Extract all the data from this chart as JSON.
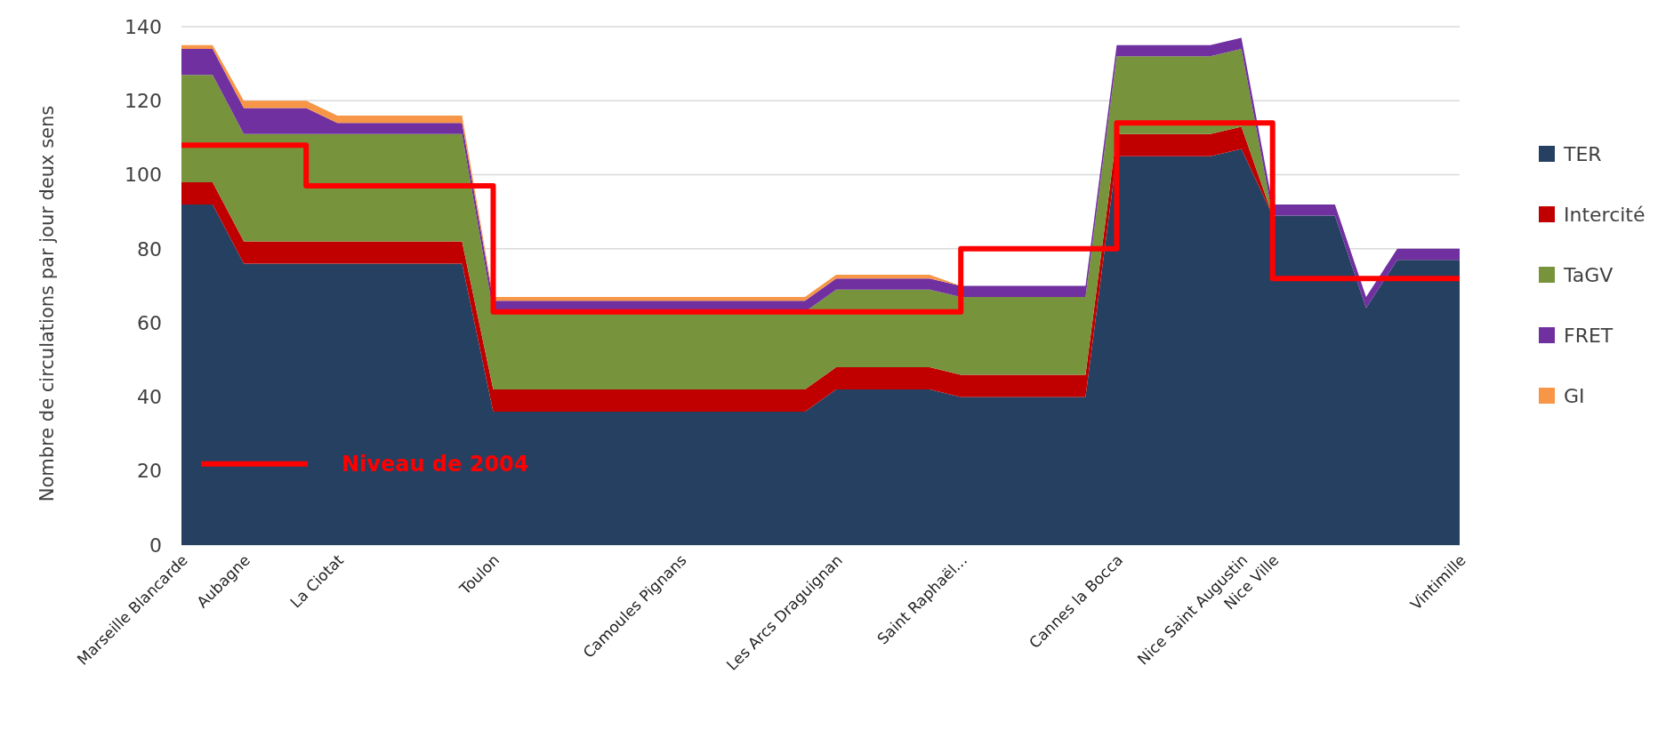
{
  "chart_data": {
    "type": "area",
    "stacked": true,
    "ylabel": "Nombre de circulations par jour  deux sens",
    "categories": [
      "Marseille Blancarde",
      null,
      "Aubagne",
      null,
      null,
      "La Ciotat",
      null,
      null,
      null,
      null,
      "Toulon",
      null,
      null,
      null,
      null,
      null,
      "Camoules Pignans",
      null,
      null,
      null,
      null,
      "Les Arcs Draguignan",
      null,
      null,
      null,
      "Saint Raphaël...",
      null,
      null,
      null,
      null,
      "Cannes la Bocca",
      null,
      null,
      null,
      "Nice Saint Augustin",
      "Nice Ville",
      null,
      null,
      null,
      null,
      null,
      "Vintimille"
    ],
    "ylim": [
      0,
      140
    ],
    "yticks": [
      0,
      20,
      40,
      60,
      80,
      100,
      120,
      140
    ],
    "grid": "y",
    "legend": "right",
    "series": [
      {
        "name": "TER",
        "color": "#264061",
        "values": [
          92,
          92,
          76,
          76,
          76,
          76,
          76,
          76,
          76,
          76,
          36,
          36,
          36,
          36,
          36,
          36,
          36,
          36,
          36,
          36,
          36,
          42,
          42,
          42,
          42,
          40,
          40,
          40,
          40,
          40,
          105,
          105,
          105,
          105,
          107,
          89,
          89,
          89,
          64,
          77,
          77,
          77
        ]
      },
      {
        "name": "Intercité",
        "color": "#c00000",
        "values": [
          6,
          6,
          6,
          6,
          6,
          6,
          6,
          6,
          6,
          6,
          6,
          6,
          6,
          6,
          6,
          6,
          6,
          6,
          6,
          6,
          6,
          6,
          6,
          6,
          6,
          6,
          6,
          6,
          6,
          6,
          6,
          6,
          6,
          6,
          6,
          0,
          0,
          0,
          0,
          0,
          0,
          0
        ]
      },
      {
        "name": "TaGV",
        "color": "#77933c",
        "values": [
          29,
          29,
          29,
          29,
          29,
          29,
          29,
          29,
          29,
          29,
          21,
          21,
          21,
          21,
          21,
          21,
          21,
          21,
          21,
          21,
          21,
          21,
          21,
          21,
          21,
          21,
          21,
          21,
          21,
          21,
          21,
          21,
          21,
          21,
          21,
          0,
          0,
          0,
          0,
          0,
          0,
          0
        ]
      },
      {
        "name": "FRET",
        "color": "#7030a0",
        "values": [
          7,
          7,
          7,
          7,
          7,
          3,
          3,
          3,
          3,
          3,
          3,
          3,
          3,
          3,
          3,
          3,
          3,
          3,
          3,
          3,
          3,
          3,
          3,
          3,
          3,
          3,
          3,
          3,
          3,
          3,
          3,
          3,
          3,
          3,
          3,
          3,
          3,
          3,
          3,
          3,
          3,
          3
        ]
      },
      {
        "name": "GI",
        "color": "#f79646",
        "values": [
          1,
          1,
          2,
          2,
          2,
          2,
          2,
          2,
          2,
          2,
          1,
          1,
          1,
          1,
          1,
          1,
          1,
          1,
          1,
          1,
          1,
          1,
          1,
          1,
          1,
          0,
          0,
          0,
          0,
          0,
          0,
          0,
          0,
          0,
          0,
          0,
          0,
          0,
          0,
          0,
          0,
          0
        ]
      },
      {
        "name": "Niveau de 2004",
        "type": "step",
        "color": "#ff0000",
        "values": [
          108,
          108,
          108,
          108,
          97,
          97,
          97,
          97,
          97,
          97,
          63,
          63,
          63,
          63,
          63,
          63,
          63,
          63,
          63,
          63,
          63,
          63,
          63,
          63,
          63,
          80,
          80,
          80,
          80,
          80,
          114,
          114,
          114,
          114,
          114,
          72,
          72,
          72,
          72,
          72,
          72,
          72
        ]
      }
    ]
  }
}
